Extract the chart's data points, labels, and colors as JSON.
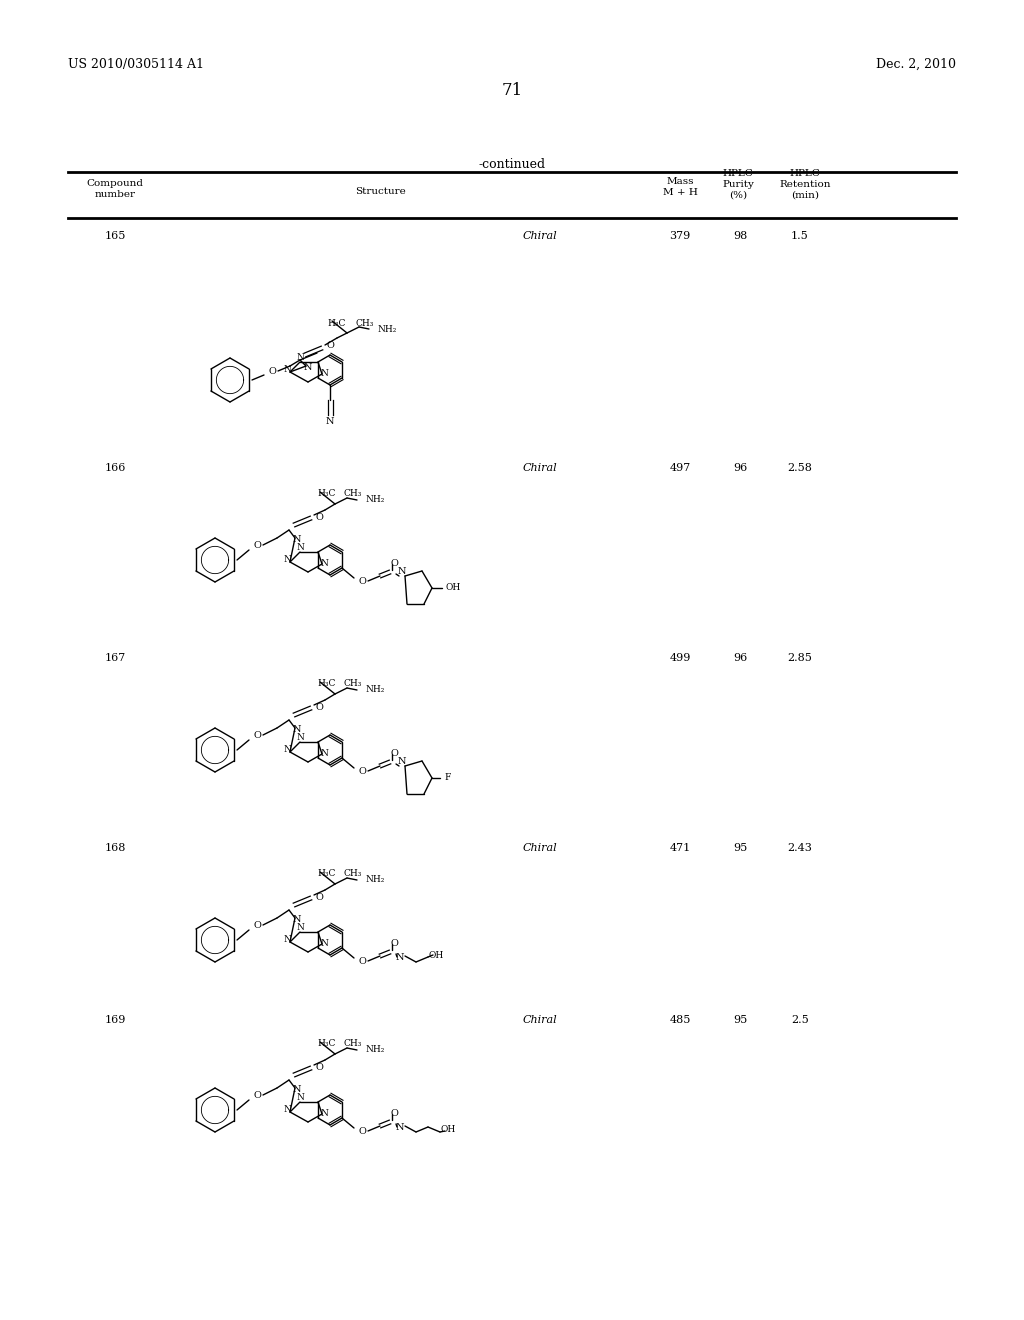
{
  "background_color": "#ffffff",
  "page_number": "71",
  "patent_number": "US 2010/0305114 A1",
  "patent_date": "Dec. 2, 2010",
  "table_title": "-continued",
  "col_headers": {
    "compound": "Compound\nnumber",
    "structure": "Structure",
    "mass": "Mass\nM + H",
    "hplc_purity": "HPLC\nPurity\n(%)",
    "hplc_retention": "HPLC\nRetention\n(min)"
  },
  "rows": [
    {
      "compound": "165",
      "chiral": "Chiral",
      "mass": "379",
      "purity": "98",
      "retention": "1.5"
    },
    {
      "compound": "166",
      "chiral": "Chiral",
      "mass": "497",
      "purity": "96",
      "retention": "2.58"
    },
    {
      "compound": "167",
      "chiral": "",
      "mass": "499",
      "purity": "96",
      "retention": "2.85"
    },
    {
      "compound": "168",
      "chiral": "Chiral",
      "mass": "471",
      "purity": "95",
      "retention": "2.43"
    },
    {
      "compound": "169",
      "chiral": "Chiral",
      "mass": "485",
      "purity": "95",
      "retention": "2.5"
    }
  ],
  "font_size_header": 8,
  "font_size_body": 8,
  "font_size_page": 9,
  "font_size_title": 9
}
